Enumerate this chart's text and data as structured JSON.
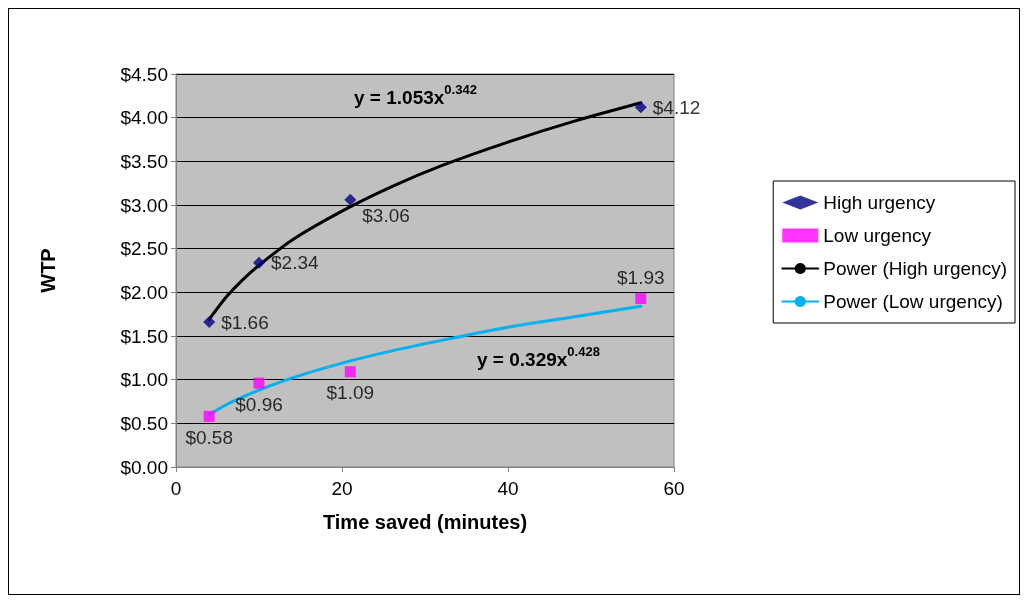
{
  "chart_data": {
    "type": "scatter",
    "xlabel": "Time saved (minutes)",
    "ylabel": "WTP",
    "xlim": [
      0,
      60
    ],
    "xticks": [
      0,
      20,
      40,
      60
    ],
    "ylim": [
      0,
      4.5
    ],
    "yticks": [
      {
        "value": 0,
        "label": "$0.00"
      },
      {
        "value": 0.5,
        "label": "$0.50"
      },
      {
        "value": 1,
        "label": "$1.00"
      },
      {
        "value": 1.5,
        "label": "$1.50"
      },
      {
        "value": 2,
        "label": "$2.00"
      },
      {
        "value": 2.5,
        "label": "$2.50"
      },
      {
        "value": 3,
        "label": "$3.00"
      },
      {
        "value": 3.5,
        "label": "$3.50"
      },
      {
        "value": 4,
        "label": "$4.00"
      },
      {
        "value": 4.5,
        "label": "$4.50"
      }
    ],
    "grid": "y",
    "legend": "right",
    "annotations": [
      "y = 1.053x$^{0.342}$",
      "y = 0.329x$^{0.428}$"
    ],
    "series": [
      {
        "name": "High urgency",
        "marker": "diamond",
        "color": "#000080",
        "x": [
          4,
          10,
          21,
          56
        ],
        "values": [
          1.66,
          2.34,
          3.06,
          4.12
        ],
        "value_labels": [
          "$1.66",
          "$2.34",
          "$3.06",
          "$4.12"
        ]
      },
      {
        "name": "Low urgency",
        "marker": "square",
        "color": "#ff00ff",
        "x": [
          4,
          10,
          21,
          56
        ],
        "values": [
          0.58,
          0.96,
          1.09,
          1.93
        ],
        "value_labels": [
          "$0.58",
          "$0.96",
          "$1.09",
          "$1.93"
        ]
      },
      {
        "name": "Power (High urgency)",
        "type": "line",
        "marker": "none",
        "color": "#000000",
        "x": [
          4,
          6,
          8,
          10,
          14,
          20,
          26,
          32,
          40,
          48,
          56
        ],
        "values": [
          1.69,
          1.94,
          2.14,
          2.31,
          2.6,
          2.93,
          3.21,
          3.45,
          3.72,
          3.96,
          4.17
        ]
      },
      {
        "name": "Power (Low urgency)",
        "type": "line",
        "marker": "none",
        "color": "#00b0f0",
        "x": [
          4,
          6,
          8,
          10,
          14,
          20,
          26,
          32,
          40,
          48,
          56
        ],
        "values": [
          0.6,
          0.71,
          0.8,
          0.88,
          1.02,
          1.19,
          1.33,
          1.45,
          1.6,
          1.72,
          1.84
        ]
      }
    ]
  }
}
